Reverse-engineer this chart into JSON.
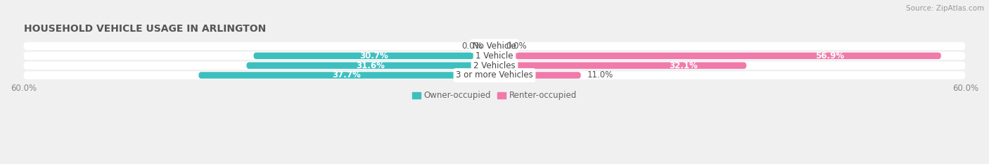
{
  "title": "HOUSEHOLD VEHICLE USAGE IN ARLINGTON",
  "source": "Source: ZipAtlas.com",
  "categories": [
    "No Vehicle",
    "1 Vehicle",
    "2 Vehicles",
    "3 or more Vehicles"
  ],
  "owner_values": [
    0.0,
    30.7,
    31.6,
    37.7
  ],
  "renter_values": [
    0.0,
    56.9,
    32.1,
    11.0
  ],
  "owner_color": "#3dbfbf",
  "renter_color": "#f07aaa",
  "owner_color_light": "#90d8d8",
  "renter_color_light": "#f5b8d0",
  "row_bg_color": "#e8e8e8",
  "fig_bg_color": "#f0f0f0",
  "axis_max": 60.0,
  "legend_owner": "Owner-occupied",
  "legend_renter": "Renter-occupied",
  "title_fontsize": 10,
  "source_fontsize": 7.5,
  "label_fontsize": 8.5,
  "category_fontsize": 8.5,
  "label_color": "#555555",
  "white_label_threshold": 15.0
}
